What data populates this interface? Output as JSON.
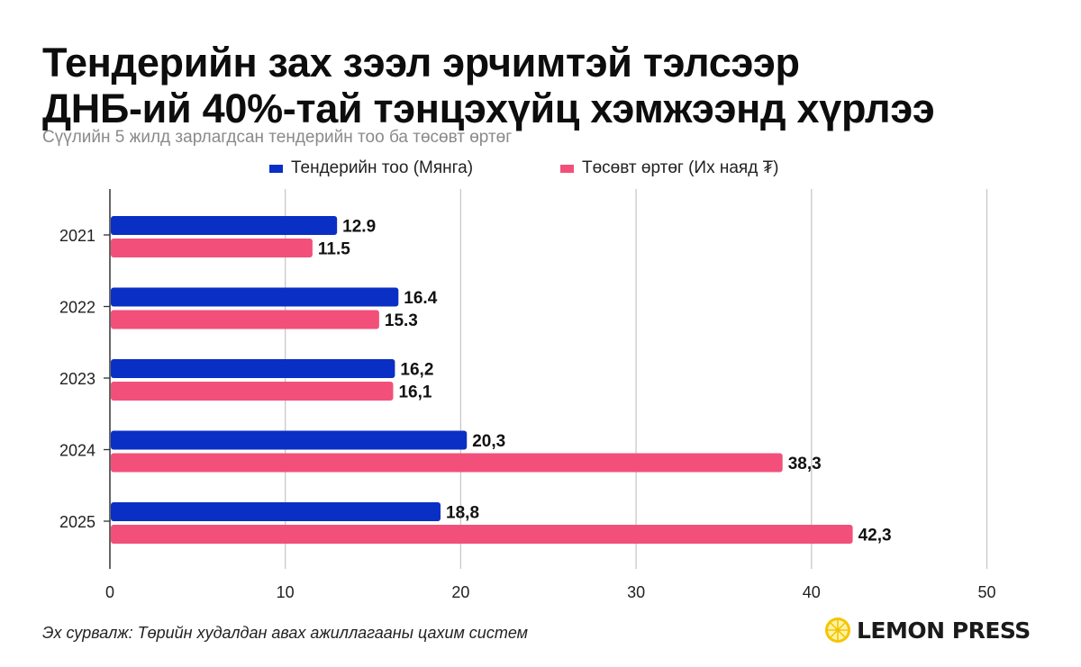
{
  "header": {
    "title_line1": "Тендерийн зах зээл эрчимтэй тэлсээр",
    "title_line2": "ДНБ-ий 40%-тай тэнцэхүйц хэмжээнд хүрлээ",
    "subtitle": "Сүүлийн 5 жилд зарлагдсан тендерийн тоо ба төсөвт өртөг"
  },
  "footer": {
    "source": "Эх сурвалж: Төрийн худалдан авах ажиллагааны цахим систем",
    "brand": "LEMON PRESS",
    "brand_icon": "lemon-slice-icon"
  },
  "chart_data": {
    "type": "bar",
    "orientation": "horizontal",
    "categories": [
      "2021",
      "2022",
      "2023",
      "2024",
      "2025"
    ],
    "series": [
      {
        "name": "Тендерийн тоо (Мянга)",
        "color": "#0a2fc4",
        "values": [
          12.9,
          16.4,
          16.2,
          20.3,
          18.8
        ],
        "labels": [
          "12.9",
          "16.4",
          "16,2",
          "20,3",
          "18,8"
        ]
      },
      {
        "name": "Төсөвт өртөг (Их наяд ₮)",
        "color": "#f2507a",
        "values": [
          11.5,
          15.3,
          16.1,
          38.3,
          42.3
        ],
        "labels": [
          "11.5",
          "15.3",
          "16,1",
          "38,3",
          "42,3"
        ]
      }
    ],
    "x_ticks": [
      "0",
      "10",
      "20",
      "30",
      "40",
      "50"
    ],
    "xlim": [
      0,
      50
    ],
    "grid": "vertical",
    "legend_position": "top-center"
  }
}
